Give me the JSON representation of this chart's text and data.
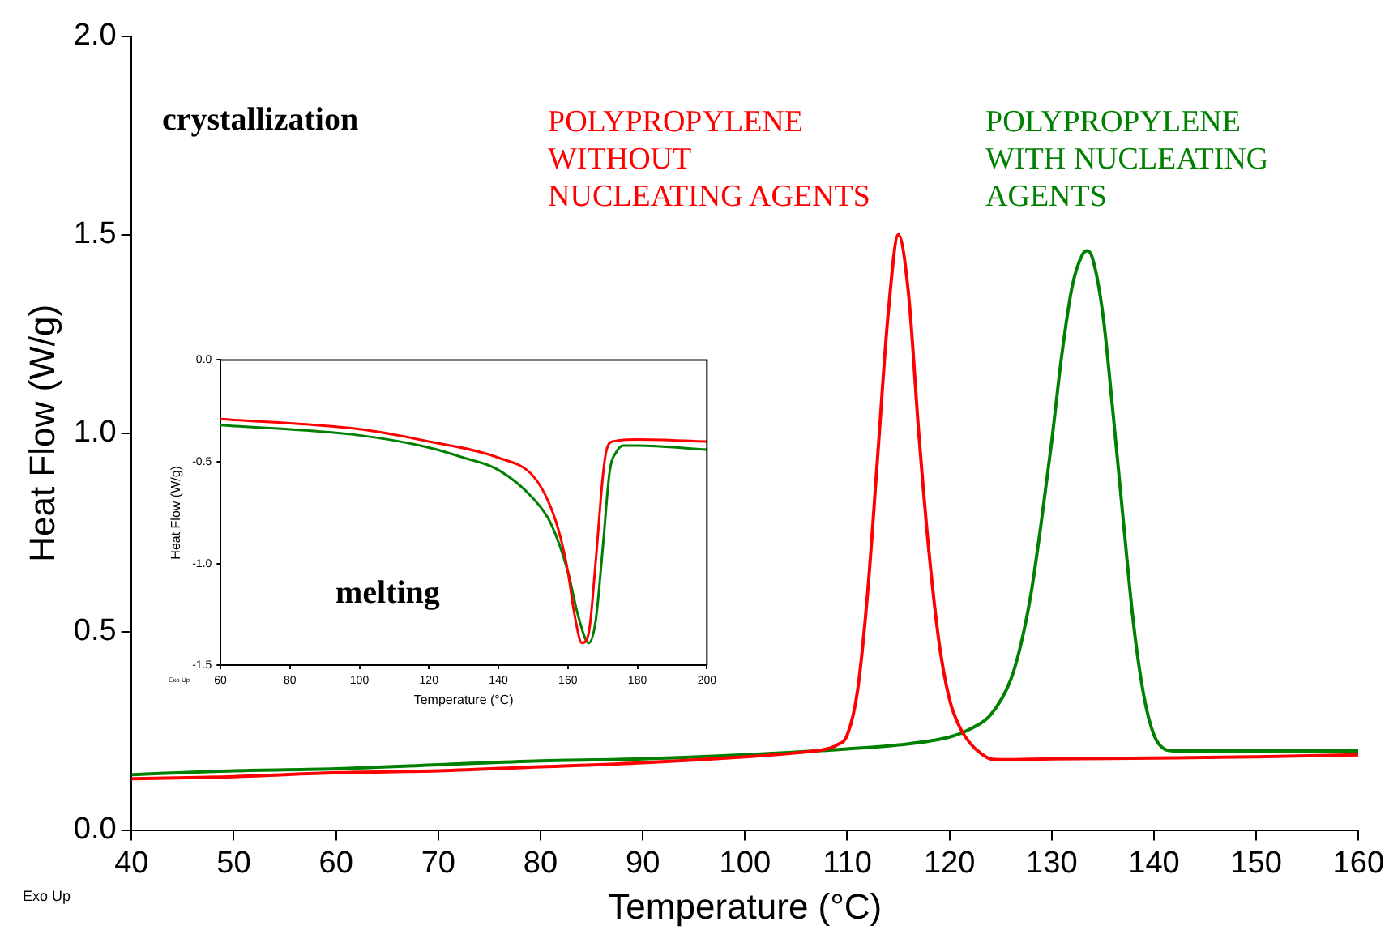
{
  "chart_data": [
    {
      "type": "line",
      "xlabel": "Temperature (°C)",
      "ylabel": "Heat Flow (W/g)",
      "xlim": [
        40,
        160
      ],
      "ylim": [
        0,
        2
      ],
      "xticks": [
        40,
        50,
        60,
        70,
        80,
        90,
        100,
        110,
        120,
        130,
        140,
        150,
        160
      ],
      "yticks": [
        {
          "value": 0,
          "label": "0.0"
        },
        {
          "value": 0.5,
          "label": "0.5"
        },
        {
          "value": 1,
          "label": "1.0"
        },
        {
          "value": 1.5,
          "label": "1.5"
        },
        {
          "value": 2,
          "label": "2.0"
        }
      ],
      "grid": false,
      "legend": false,
      "marker": "none",
      "line_style": "solid",
      "annotations": [
        "crystallization",
        "Exo Up"
      ],
      "series": [
        {
          "name": "POLYPROPYLENE WITHOUT NUCLEATING AGENTS",
          "color": "#ff0000",
          "x": [
            40,
            50,
            60,
            70,
            80,
            90,
            100,
            105,
            108,
            109,
            110,
            111,
            112,
            113,
            114,
            115,
            116,
            117,
            118,
            119,
            120,
            121,
            122,
            123,
            124,
            125,
            130,
            140,
            150,
            160
          ],
          "values": [
            0.13,
            0.135,
            0.145,
            0.15,
            0.16,
            0.17,
            0.185,
            0.195,
            0.205,
            0.215,
            0.24,
            0.35,
            0.6,
            0.95,
            1.3,
            1.5,
            1.35,
            1.0,
            0.7,
            0.47,
            0.33,
            0.26,
            0.22,
            0.195,
            0.18,
            0.178,
            0.18,
            0.182,
            0.185,
            0.19
          ]
        },
        {
          "name": "POLYPROPYLENE WITH NUCLEATING AGENTS",
          "color": "#008000",
          "x": [
            40,
            50,
            60,
            70,
            80,
            90,
            100,
            110,
            115,
            120,
            122,
            124,
            126,
            127,
            128,
            129,
            130,
            131,
            132,
            133,
            133.5,
            134,
            135,
            136,
            137,
            138,
            139,
            140,
            141,
            142,
            150,
            160
          ],
          "values": [
            0.14,
            0.15,
            0.155,
            0.165,
            0.175,
            0.18,
            0.19,
            0.205,
            0.215,
            0.235,
            0.255,
            0.29,
            0.38,
            0.47,
            0.6,
            0.78,
            0.98,
            1.2,
            1.37,
            1.45,
            1.46,
            1.44,
            1.3,
            1.05,
            0.78,
            0.52,
            0.34,
            0.24,
            0.205,
            0.2,
            0.2,
            0.2
          ]
        }
      ]
    },
    {
      "type": "line",
      "xlabel": "Temperature (°C)",
      "ylabel": "Heat Flow (W/g)",
      "xlim": [
        60,
        200
      ],
      "ylim": [
        -1.5,
        0
      ],
      "xticks": [
        60,
        80,
        100,
        120,
        140,
        160,
        180,
        200
      ],
      "yticks": [
        {
          "value": -1.5,
          "label": "-1.5"
        },
        {
          "value": -1,
          "label": "-1.0"
        },
        {
          "value": -0.5,
          "label": "-0.5"
        },
        {
          "value": 0,
          "label": "0.0"
        }
      ],
      "grid": false,
      "legend": false,
      "marker": "none",
      "line_style": "solid",
      "annotations": [
        "melting",
        "Exo Up"
      ],
      "series": [
        {
          "color": "#ff0000",
          "x": [
            60,
            100,
            120,
            140,
            150,
            155,
            158,
            160,
            162,
            164,
            166,
            168,
            170,
            171,
            173,
            180,
            200
          ],
          "values": [
            -0.29,
            -0.34,
            -0.4,
            -0.48,
            -0.57,
            -0.72,
            -0.88,
            -1.04,
            -1.26,
            -1.39,
            -1.34,
            -0.99,
            -0.58,
            -0.45,
            -0.4,
            -0.39,
            -0.4
          ]
        },
        {
          "color": "#008000",
          "x": [
            60,
            100,
            120,
            130,
            140,
            150,
            155,
            160,
            163,
            166,
            168,
            170,
            172,
            174,
            176,
            180,
            200
          ],
          "values": [
            -0.32,
            -0.37,
            -0.43,
            -0.48,
            -0.54,
            -0.68,
            -0.8,
            -1.04,
            -1.26,
            -1.39,
            -1.28,
            -0.93,
            -0.55,
            -0.45,
            -0.42,
            -0.42,
            -0.44
          ]
        }
      ]
    }
  ]
}
